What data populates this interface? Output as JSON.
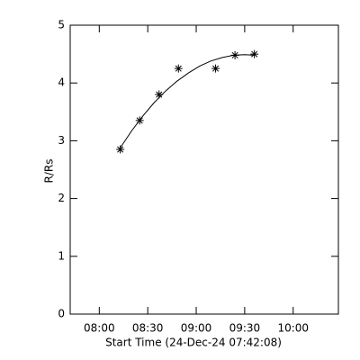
{
  "chart_data": {
    "type": "scatter",
    "xlabel": "Start Time (24-Dec-24 07:42:08)",
    "ylabel": "R/Rs",
    "xlim": [
      "07:42",
      "10:28"
    ],
    "xticks": [
      "08:00",
      "08:30",
      "09:00",
      "09:30",
      "10:00"
    ],
    "ylim": [
      0,
      5
    ],
    "yticks": [
      0,
      1,
      2,
      3,
      4,
      5
    ],
    "series": [
      {
        "marker": "asterisk",
        "color": "#000000",
        "x": [
          "08:13",
          "08:25",
          "08:37",
          "08:49",
          "09:12",
          "09:24",
          "09:36"
        ],
        "values": [
          2.85,
          3.35,
          3.8,
          4.25,
          4.25,
          4.48,
          4.5
        ]
      },
      {
        "marker": "line",
        "color": "#000000",
        "x": [
          "08:13",
          "08:20",
          "08:27",
          "08:34",
          "08:41",
          "08:48",
          "08:55",
          "09:02",
          "09:09",
          "09:16",
          "09:23",
          "09:30",
          "09:36"
        ],
        "values": [
          2.88,
          3.17,
          3.43,
          3.66,
          3.86,
          4.03,
          4.17,
          4.29,
          4.38,
          4.44,
          4.48,
          4.49,
          4.48
        ]
      }
    ]
  }
}
